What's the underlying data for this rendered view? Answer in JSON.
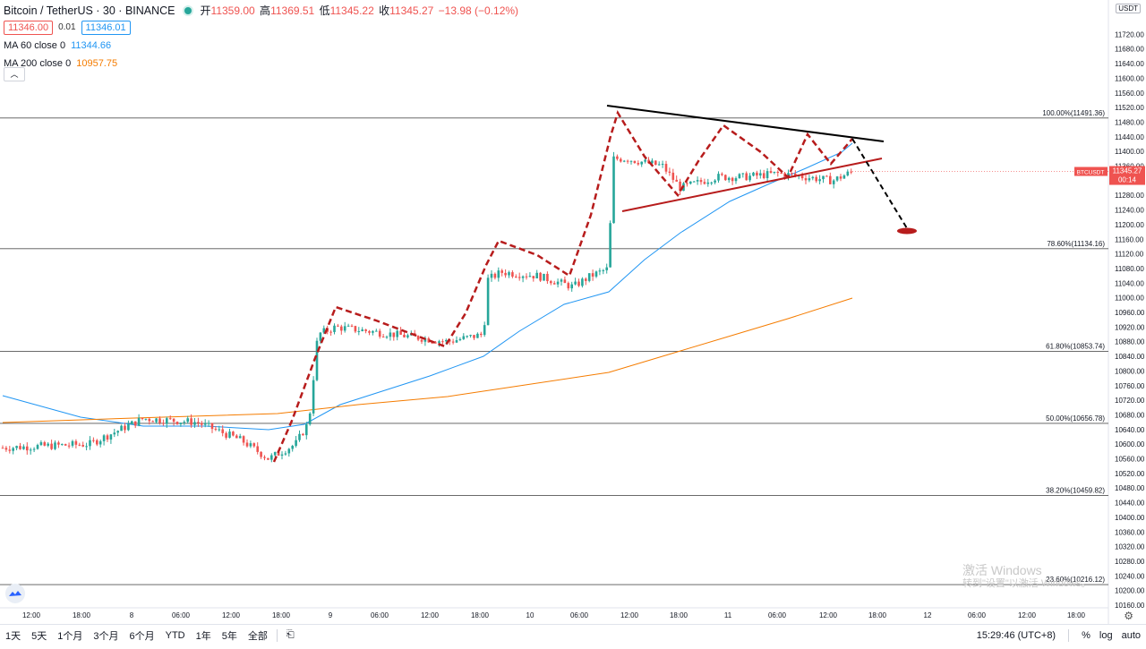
{
  "header": {
    "symbol": "Bitcoin / TetherUS · 30 · BINANCE",
    "open_label": "开",
    "open": "11359.00",
    "high_label": "高",
    "high": "11369.51",
    "low_label": "低",
    "low": "11345.22",
    "close_label": "收",
    "close": "11345.27",
    "change": "−13.98 (−0.12%)",
    "sell_price": "11346.00",
    "spread": "0.01",
    "buy_price": "11346.01"
  },
  "indicators": [
    {
      "label": "MA 60 close 0",
      "value": "11344.66",
      "color": "#2196f3"
    },
    {
      "label": "MA 200 close 0",
      "value": "10957.75",
      "color": "#f57c00"
    }
  ],
  "currency_badge": "USDT",
  "price_axis": {
    "min": 10160,
    "max": 11760,
    "ticks": [
      "11720.00",
      "11680.00",
      "11640.00",
      "11600.00",
      "11560.00",
      "11520.00",
      "11480.00",
      "11440.00",
      "11400.00",
      "11360.00",
      "11320.00",
      "11280.00",
      "11240.00",
      "11200.00",
      "11160.00",
      "11120.00",
      "11080.00",
      "11040.00",
      "11000.00",
      "10960.00",
      "10920.00",
      "10880.00",
      "10840.00",
      "10800.00",
      "10760.00",
      "10720.00",
      "10680.00",
      "10640.00",
      "10600.00",
      "10560.00",
      "10520.00",
      "10480.00",
      "10440.00",
      "10400.00",
      "10360.00",
      "10320.00",
      "10280.00",
      "10240.00",
      "10200.00",
      "10160.00"
    ],
    "current_price_label": "11345.27",
    "symbol_tag": "BTCUSDT",
    "countdown": "00:14"
  },
  "time_axis": {
    "labels": [
      "12:00",
      "18:00",
      "8",
      "06:00",
      "12:00",
      "18:00",
      "9",
      "06:00",
      "12:00",
      "18:00",
      "10",
      "06:00",
      "12:00",
      "18:00",
      "11",
      "06:00",
      "12:00",
      "18:00",
      "12",
      "06:00",
      "12:00",
      "18:00"
    ]
  },
  "fibonacci": [
    {
      "label": "100.00%(11491.36)",
      "price": 11491.36
    },
    {
      "label": "78.60%(11134.16)",
      "price": 11134.16
    },
    {
      "label": "61.80%(10853.74)",
      "price": 10853.74
    },
    {
      "label": "50.00%(10656.78)",
      "price": 10656.78
    },
    {
      "label": "38.20%(10459.82)",
      "price": 10459.82
    },
    {
      "label": "23.60%(10216.12)",
      "price": 10216.12
    }
  ],
  "colors": {
    "up": "#26a69a",
    "down": "#ef5350",
    "ma60": "#2196f3",
    "ma200": "#f57c00",
    "accent": "#b71c1c"
  },
  "toolbar": {
    "ranges": [
      "1天",
      "5天",
      "1个月",
      "3个月",
      "6个月",
      "YTD",
      "1年",
      "5年",
      "全部"
    ],
    "clock": "15:29:46 (UTC+8)",
    "percent": "%",
    "log": "log",
    "auto": "auto"
  },
  "watermark": {
    "line1": "激活 Windows",
    "line2": "转到\"设置\"以激活 Windows。"
  }
}
